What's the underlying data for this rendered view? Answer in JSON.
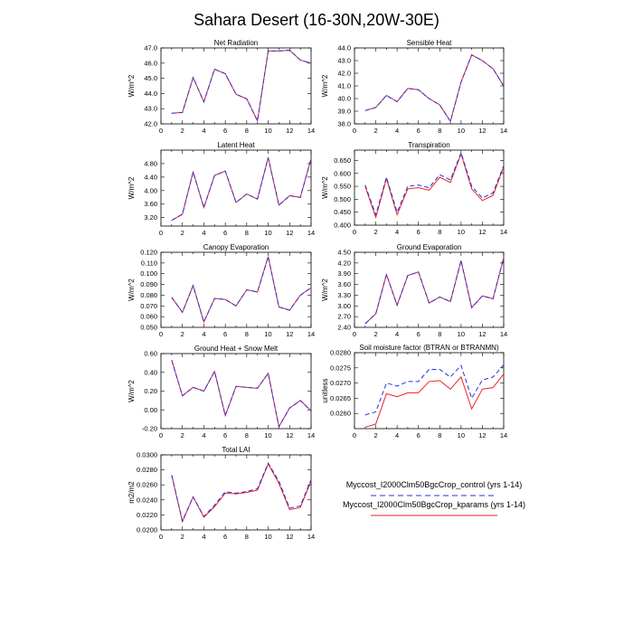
{
  "page_title": "Sahara Desert (16-30N,20W-30E)",
  "legend": {
    "control_label": "Myccost_I2000Clm50BgcCrop_control (yrs 1-14)",
    "kparams_label": "Myccost_I2000Clm50BgcCrop_kparams (yrs 1-14)",
    "control_color": "#2233dd",
    "kparams_color": "#ee2222"
  },
  "chart_data": [
    {
      "type": "line",
      "title": "Net Radiation",
      "ylabel": "W/m^2",
      "x": [
        1,
        2,
        3,
        4,
        5,
        6,
        7,
        8,
        9,
        10,
        11,
        12,
        13,
        14
      ],
      "xlim": [
        0,
        14
      ],
      "xticks": [
        0,
        2,
        4,
        6,
        8,
        10,
        12,
        14
      ],
      "ylim": [
        42.0,
        47.0
      ],
      "yticks": [
        42.0,
        43.0,
        44.0,
        45.0,
        46.0,
        47.0
      ],
      "ytick_labels": [
        "42.0",
        "43.0",
        "44.0",
        "45.0",
        "46.0",
        "47.0"
      ],
      "series": [
        {
          "values": [
            42.7,
            42.75,
            45.05,
            43.45,
            45.6,
            45.3,
            43.95,
            43.65,
            42.2,
            46.8,
            46.8,
            46.85,
            46.2,
            46.0
          ]
        },
        {
          "values": [
            42.7,
            42.75,
            45.05,
            43.45,
            45.6,
            45.3,
            43.95,
            43.65,
            42.2,
            46.8,
            46.8,
            46.85,
            46.2,
            46.0
          ]
        }
      ]
    },
    {
      "type": "line",
      "title": "Sensible Heat",
      "ylabel": "W/m^2",
      "x": [
        1,
        2,
        3,
        4,
        5,
        6,
        7,
        8,
        9,
        10,
        11,
        12,
        13,
        14
      ],
      "xlim": [
        0,
        14
      ],
      "xticks": [
        0,
        2,
        4,
        6,
        8,
        10,
        12,
        14
      ],
      "ylim": [
        38.0,
        44.0
      ],
      "yticks": [
        38.0,
        39.0,
        40.0,
        41.0,
        42.0,
        43.0,
        44.0
      ],
      "ytick_labels": [
        "38.0",
        "39.0",
        "40.0",
        "41.0",
        "42.0",
        "43.0",
        "44.0"
      ],
      "series": [
        {
          "values": [
            39.05,
            39.3,
            40.25,
            39.75,
            40.8,
            40.7,
            40.0,
            39.5,
            38.2,
            41.3,
            43.45,
            43.0,
            42.35,
            41.0
          ]
        },
        {
          "values": [
            39.05,
            39.3,
            40.25,
            39.75,
            40.8,
            40.7,
            40.0,
            39.5,
            38.2,
            41.3,
            43.45,
            43.0,
            42.35,
            41.0
          ]
        }
      ]
    },
    {
      "type": "line",
      "title": "Latent Heat",
      "ylabel": "W/m^2",
      "x": [
        1,
        2,
        3,
        4,
        5,
        6,
        7,
        8,
        9,
        10,
        11,
        12,
        13,
        14
      ],
      "xlim": [
        0,
        14
      ],
      "xticks": [
        0,
        2,
        4,
        6,
        8,
        10,
        12,
        14
      ],
      "ylim": [
        2.95,
        5.2
      ],
      "yticks": [
        3.2,
        3.6,
        4.0,
        4.4,
        4.8
      ],
      "ytick_labels": [
        "3.20",
        "3.60",
        "4.00",
        "4.40",
        "4.80"
      ],
      "series": [
        {
          "values": [
            3.12,
            3.3,
            4.55,
            3.5,
            4.45,
            4.58,
            3.65,
            3.9,
            3.75,
            4.98,
            3.57,
            3.85,
            3.8,
            4.95
          ]
        },
        {
          "values": [
            3.12,
            3.3,
            4.55,
            3.5,
            4.45,
            4.58,
            3.65,
            3.9,
            3.75,
            4.98,
            3.57,
            3.85,
            3.8,
            4.95
          ]
        }
      ]
    },
    {
      "type": "line",
      "title": "Transpiration",
      "ylabel": "W/m^2",
      "x": [
        1,
        2,
        3,
        4,
        5,
        6,
        7,
        8,
        9,
        10,
        11,
        12,
        13,
        14
      ],
      "xlim": [
        0,
        14
      ],
      "xticks": [
        0,
        2,
        4,
        6,
        8,
        10,
        12,
        14
      ],
      "ylim": [
        0.4,
        0.69
      ],
      "yticks": [
        0.4,
        0.45,
        0.5,
        0.55,
        0.6,
        0.65
      ],
      "ytick_labels": [
        "0.400",
        "0.450",
        "0.500",
        "0.550",
        "0.600",
        "0.650"
      ],
      "series": [
        {
          "values": [
            0.555,
            0.44,
            0.585,
            0.45,
            0.55,
            0.555,
            0.545,
            0.595,
            0.575,
            0.68,
            0.55,
            0.505,
            0.525,
            0.63
          ]
        },
        {
          "values": [
            0.55,
            0.43,
            0.58,
            0.44,
            0.54,
            0.545,
            0.535,
            0.585,
            0.565,
            0.675,
            0.54,
            0.495,
            0.515,
            0.625
          ]
        }
      ]
    },
    {
      "type": "line",
      "title": "Canopy Evaporation",
      "ylabel": "W/m^2",
      "x": [
        1,
        2,
        3,
        4,
        5,
        6,
        7,
        8,
        9,
        10,
        11,
        12,
        13,
        14
      ],
      "xlim": [
        0,
        14
      ],
      "xticks": [
        0,
        2,
        4,
        6,
        8,
        10,
        12,
        14
      ],
      "ylim": [
        0.05,
        0.12
      ],
      "yticks": [
        0.05,
        0.06,
        0.07,
        0.08,
        0.09,
        0.1,
        0.11,
        0.12
      ],
      "ytick_labels": [
        "0.050",
        "0.060",
        "0.070",
        "0.080",
        "0.090",
        "0.100",
        "0.110",
        "0.120"
      ],
      "series": [
        {
          "values": [
            0.078,
            0.064,
            0.089,
            0.055,
            0.077,
            0.076,
            0.07,
            0.085,
            0.083,
            0.116,
            0.069,
            0.066,
            0.08,
            0.087
          ]
        },
        {
          "values": [
            0.078,
            0.064,
            0.089,
            0.055,
            0.077,
            0.076,
            0.07,
            0.085,
            0.083,
            0.116,
            0.069,
            0.066,
            0.08,
            0.087
          ]
        }
      ]
    },
    {
      "type": "line",
      "title": "Ground Evaporation",
      "ylabel": "W/m^2",
      "x": [
        1,
        2,
        3,
        4,
        5,
        6,
        7,
        8,
        9,
        10,
        11,
        12,
        13,
        14
      ],
      "xlim": [
        0,
        14
      ],
      "xticks": [
        0,
        2,
        4,
        6,
        8,
        10,
        12,
        14
      ],
      "ylim": [
        2.4,
        4.5
      ],
      "yticks": [
        2.4,
        2.7,
        3.0,
        3.3,
        3.6,
        3.9,
        4.2,
        4.5
      ],
      "ytick_labels": [
        "2.40",
        "2.70",
        "3.00",
        "3.30",
        "3.60",
        "3.90",
        "4.20",
        "4.50"
      ],
      "series": [
        {
          "values": [
            2.5,
            2.78,
            3.88,
            3.02,
            3.85,
            3.95,
            3.08,
            3.25,
            3.12,
            4.27,
            2.95,
            3.28,
            3.2,
            4.35
          ]
        },
        {
          "values": [
            2.5,
            2.78,
            3.88,
            3.02,
            3.85,
            3.95,
            3.08,
            3.25,
            3.12,
            4.27,
            2.95,
            3.28,
            3.2,
            4.35
          ]
        }
      ]
    },
    {
      "type": "line",
      "title": "Ground Heat + Snow Melt",
      "ylabel": "W/m^2",
      "x": [
        1,
        2,
        3,
        4,
        5,
        6,
        7,
        8,
        9,
        10,
        11,
        12,
        13,
        14
      ],
      "xlim": [
        0,
        14
      ],
      "xticks": [
        0,
        2,
        4,
        6,
        8,
        10,
        12,
        14
      ],
      "ylim": [
        -0.2,
        0.6
      ],
      "yticks": [
        -0.2,
        0.0,
        0.2,
        0.4,
        0.6
      ],
      "ytick_labels": [
        "-0.20",
        "0.00",
        "0.20",
        "0.40",
        "0.60"
      ],
      "series": [
        {
          "values": [
            0.53,
            0.15,
            0.24,
            0.2,
            0.41,
            -0.06,
            0.25,
            0.24,
            0.23,
            0.39,
            -0.18,
            0.02,
            0.1,
            -0.01
          ]
        },
        {
          "values": [
            0.53,
            0.15,
            0.24,
            0.2,
            0.41,
            -0.06,
            0.25,
            0.24,
            0.23,
            0.39,
            -0.18,
            0.02,
            0.1,
            -0.01
          ]
        }
      ]
    },
    {
      "type": "line",
      "title": "Soil moisture factor (BTRAN or BTRANMN)",
      "ylabel": "unitless",
      "x": [
        1,
        2,
        3,
        4,
        5,
        6,
        7,
        8,
        9,
        10,
        11,
        12,
        13,
        14
      ],
      "xlim": [
        0,
        14
      ],
      "xticks": [
        0,
        2,
        4,
        6,
        8,
        10,
        12,
        14
      ],
      "ylim": [
        0.0255,
        0.028
      ],
      "yticks": [
        0.026,
        0.0265,
        0.027,
        0.0275,
        0.028
      ],
      "ytick_labels": [
        "0.0260",
        "0.0265",
        "0.0270",
        "0.0275",
        "0.0280"
      ],
      "series": [
        {
          "values": [
            0.02595,
            0.02605,
            0.027,
            0.0269,
            0.02705,
            0.02705,
            0.02745,
            0.02745,
            0.0272,
            0.02758,
            0.0265,
            0.0271,
            0.0272,
            0.0276
          ]
        },
        {
          "values": [
            0.02555,
            0.02565,
            0.02665,
            0.02655,
            0.02668,
            0.02668,
            0.02705,
            0.02708,
            0.0268,
            0.0272,
            0.02615,
            0.0268,
            0.02685,
            0.0273
          ]
        }
      ]
    },
    {
      "type": "line",
      "title": "Total LAI",
      "ylabel": "m2/m2",
      "x": [
        1,
        2,
        3,
        4,
        5,
        6,
        7,
        8,
        9,
        10,
        11,
        12,
        13,
        14
      ],
      "xlim": [
        0,
        14
      ],
      "xticks": [
        0,
        2,
        4,
        6,
        8,
        10,
        12,
        14
      ],
      "ylim": [
        0.02,
        0.03
      ],
      "yticks": [
        0.02,
        0.022,
        0.024,
        0.026,
        0.028,
        0.03
      ],
      "ytick_labels": [
        "0.0200",
        "0.0220",
        "0.0240",
        "0.0260",
        "0.0280",
        "0.0300"
      ],
      "series": [
        {
          "values": [
            0.0273,
            0.0212,
            0.0244,
            0.0218,
            0.0233,
            0.0251,
            0.0249,
            0.0251,
            0.0255,
            0.0289,
            0.0265,
            0.0229,
            0.0232,
            0.0267
          ]
        },
        {
          "values": [
            0.0273,
            0.0211,
            0.0244,
            0.0217,
            0.0231,
            0.0249,
            0.0248,
            0.025,
            0.0253,
            0.0288,
            0.0262,
            0.0227,
            0.023,
            0.0265
          ]
        }
      ]
    }
  ]
}
